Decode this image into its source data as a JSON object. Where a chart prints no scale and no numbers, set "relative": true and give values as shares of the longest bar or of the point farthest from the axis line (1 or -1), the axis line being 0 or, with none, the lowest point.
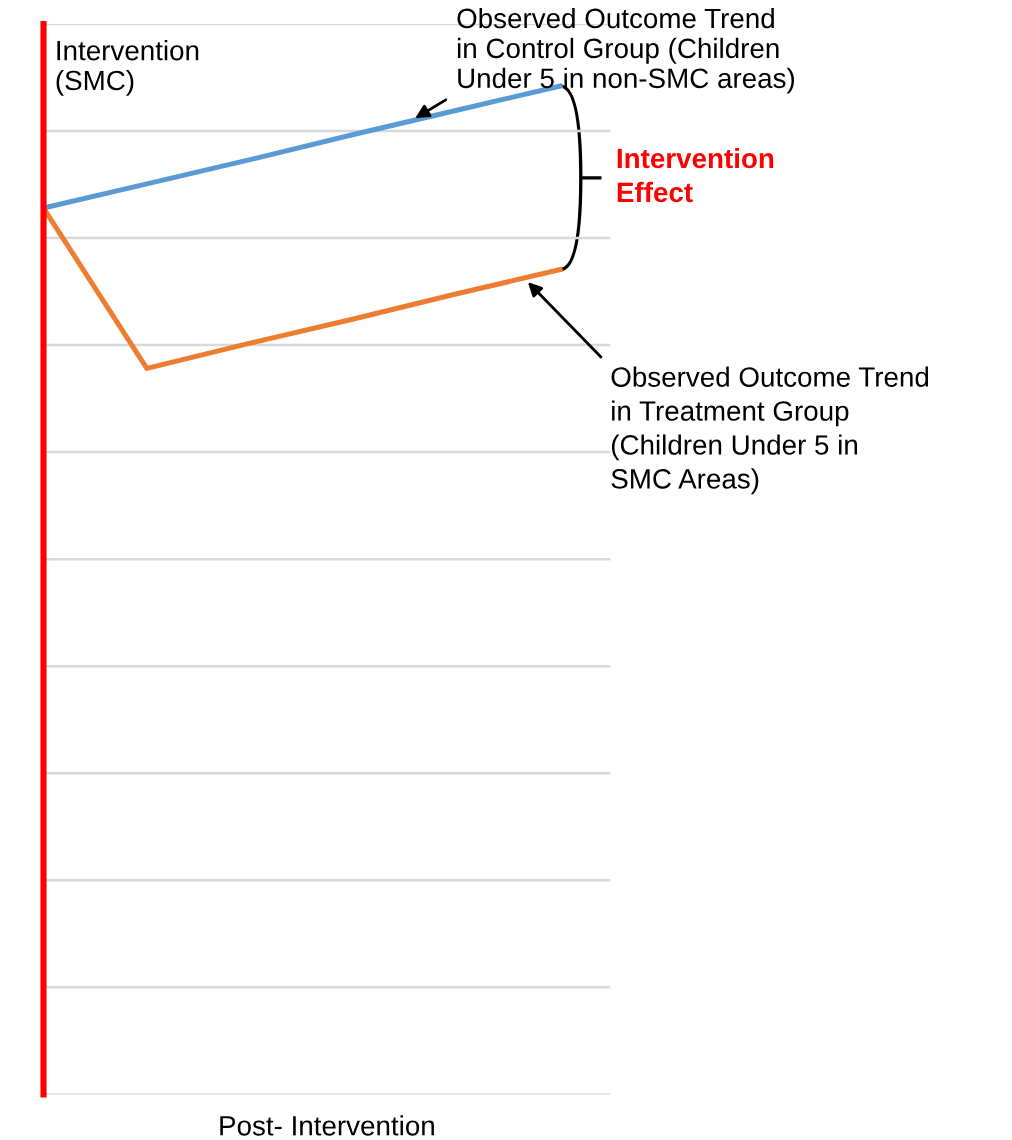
{
  "chart_data": {
    "type": "line",
    "relative": true,
    "xlabel": "Post- Intervention",
    "ylabel": "Intervention\n(SMC)",
    "grid": "y",
    "legend": false,
    "marker": "none",
    "line_style": "solid",
    "categories": [
      null,
      null,
      null,
      null,
      null,
      null
    ],
    "series": [
      {
        "color": "#5b9bd5",
        "values": [
          0.879,
          0.903,
          0.927,
          0.952,
          0.976,
          1
        ]
      },
      {
        "color": "#ed7d31",
        "values": [
          0.879,
          0.72,
          0.745,
          0.769,
          0.794,
          0.818
        ]
      }
    ],
    "annotations": [
      "Observed Outcome Trend\nin Control Group (Children\nUnder 5 in non-SMC areas)",
      "Intervention\nEffect",
      "Observed Outcome Trend\nin Treatment Group\n(Children Under 5 in\nSMC Areas)"
    ]
  }
}
